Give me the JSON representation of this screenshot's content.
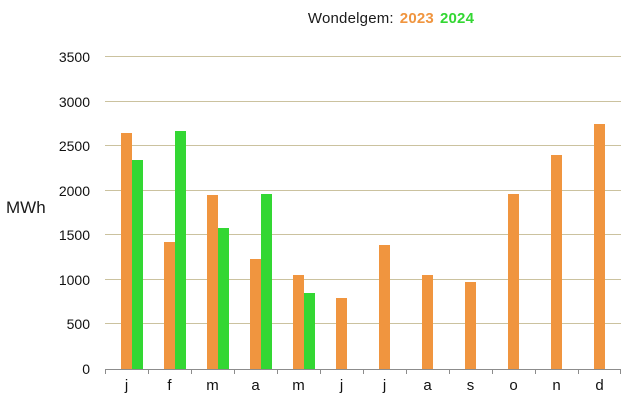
{
  "title": {
    "prefix": "Wondelgem:",
    "year_2023": "2023",
    "year_2024": "2024"
  },
  "colors": {
    "series_2023": "#F0953F",
    "series_2024": "#33D733",
    "gridline": "#cbc29f",
    "axis": "#8c8c8c",
    "text": "#1a1a1a"
  },
  "chart_data": {
    "type": "bar",
    "title": "Wondelgem: 2023 2024",
    "ylabel": "MWh",
    "xlabel": "",
    "categories": [
      "j",
      "f",
      "m",
      "a",
      "m",
      "j",
      "j",
      "a",
      "s",
      "o",
      "n",
      "d"
    ],
    "series": [
      {
        "name": "2023",
        "color": "#F0953F",
        "values": [
          2650,
          1420,
          1950,
          1230,
          1060,
          800,
          1390,
          1050,
          980,
          1960,
          2400,
          2750
        ]
      },
      {
        "name": "2024",
        "color": "#33D733",
        "values": [
          2350,
          2670,
          1580,
          1960,
          850,
          null,
          null,
          null,
          null,
          null,
          null,
          null
        ]
      }
    ],
    "ylim": [
      0,
      3500
    ],
    "ytick_step": 500,
    "y_ticks": [
      0,
      500,
      1000,
      1500,
      2000,
      2500,
      3000,
      3500
    ],
    "grid": true,
    "legend_position": "in-title-colored-years"
  }
}
